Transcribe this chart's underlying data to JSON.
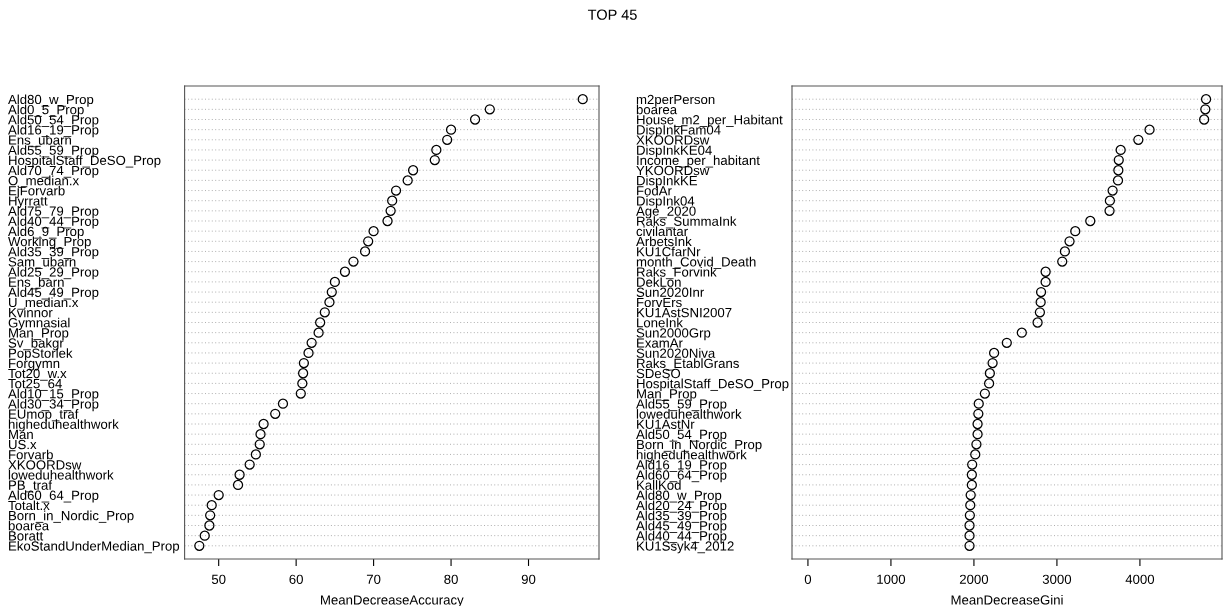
{
  "chart_data": [
    {
      "type": "scatter",
      "title": "TOP 45",
      "orientation": "horizontal",
      "xlabel": "MeanDecreaseAccuracy",
      "color": "#000000",
      "marker": "circle",
      "grid": "y",
      "legend": false,
      "categories": [
        "Ald80_w_Prop",
        "Ald0_5_Prop",
        "Ald50_54_Prop",
        "Ald16_19_Prop",
        "Ens_ubarn",
        "Ald55_59_Prop",
        "HospitalStaff_DeSO_Prop",
        "Ald70_74_Prop",
        "O_median.x",
        "EjForvarb",
        "Hyrratt",
        "Ald75_79_Prop",
        "Ald40_44_Prop",
        "Ald6_9_Prop",
        "Working_Prop",
        "Ald35_39_Prop",
        "Sam_ubarn",
        "Ald25_29_Prop",
        "Ens_barn",
        "Ald45_49_Prop",
        "U_median.x",
        "Kvinnor",
        "Gymnasial",
        "Man_Prop",
        "Sv_bakgr",
        "PopStorlek",
        "Forgymn",
        "Tot20_w.x",
        "Tot25_64",
        "Ald10_15_Prop",
        "Ald30_34_Prop",
        "EUmop_traf",
        "higheduhealthwork",
        "Man",
        "US.x",
        "Forvarb",
        "XKOORDsw",
        "loweduhealthwork",
        "PB_traf",
        "Ald60_64_Prop",
        "Totalt.x",
        "Born_in_Nordic_Prop",
        "boarea",
        "Boratt",
        "EkoStandUnderMedian_Prop"
      ],
      "values": [
        97.0,
        85.0,
        83.1,
        80.0,
        79.5,
        78.1,
        77.9,
        75.1,
        74.4,
        72.9,
        72.4,
        72.2,
        71.8,
        70.0,
        69.3,
        68.9,
        67.4,
        66.3,
        65.0,
        64.6,
        64.3,
        63.7,
        63.1,
        62.9,
        62.0,
        61.6,
        61.0,
        60.9,
        60.8,
        60.6,
        58.3,
        57.3,
        55.8,
        55.4,
        55.3,
        54.8,
        54.0,
        52.7,
        52.5,
        50.0,
        49.1,
        48.9,
        48.8,
        48.2,
        47.5
      ],
      "xlim": [
        45.6,
        99.1
      ],
      "xticks": [
        50,
        60,
        70,
        80,
        90
      ]
    },
    {
      "type": "scatter",
      "orientation": "horizontal",
      "xlabel": "MeanDecreaseGini",
      "color": "#000000",
      "marker": "circle",
      "grid": "y",
      "legend": false,
      "categories": [
        "m2perPerson",
        "boarea",
        "House_m2_per_Habitant",
        "DispInkFam04",
        "XKOORDsw",
        "DispInkKE04",
        "Income_per_habitant",
        "YKOORDsw",
        "DispInkKE",
        "FodAr",
        "DispInk04",
        "Age_2020",
        "Raks_SummaInk",
        "civilantar",
        "ArbetsInk",
        "KU1CfarNr",
        "month_Covid_Death",
        "Raks_Forvink",
        "DekLon",
        "Sun2020Inr",
        "ForvErs",
        "KU1AstSNI2007",
        "LoneInk",
        "Sun2000Grp",
        "ExamAr",
        "Sun2020Niva",
        "Raks_EtablGrans",
        "SDeSO",
        "HospitalStaff_DeSO_Prop",
        "Man_Prop",
        "Ald55_59_Prop",
        "loweduhealthwork",
        "KU1AstNr",
        "Ald50_54_Prop",
        "Born_in_Nordic_Prop",
        "higheduhealthwork",
        "Ald16_19_Prop",
        "Ald60_64_Prop",
        "KallKod",
        "Ald80_w_Prop",
        "Ald20_24_Prop",
        "Ald35_39_Prop",
        "Ald45_49_Prop",
        "Ald40_44_Prop",
        "KU1Ssyk4_2012"
      ],
      "values": [
        4797,
        4788,
        4774,
        4116,
        3981,
        3768,
        3745,
        3740,
        3736,
        3671,
        3638,
        3634,
        3402,
        3221,
        3152,
        3096,
        3064,
        2864,
        2864,
        2809,
        2804,
        2795,
        2767,
        2577,
        2396,
        2243,
        2225,
        2192,
        2183,
        2132,
        2058,
        2053,
        2044,
        2044,
        2030,
        2016,
        1979,
        1975,
        1975,
        1961,
        1956,
        1951,
        1947,
        1947,
        1947
      ],
      "xlim": [
        -192,
        4989
      ],
      "xticks": [
        0,
        1000,
        2000,
        3000,
        4000
      ]
    }
  ]
}
